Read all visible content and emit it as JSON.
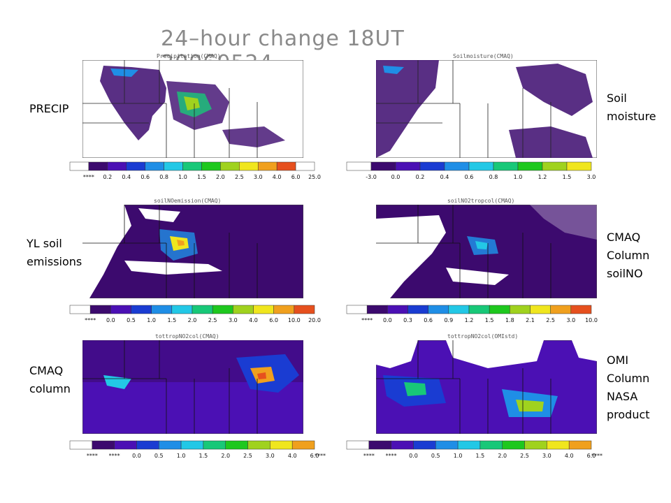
{
  "main_title": "24–hour change 18UT 20060524",
  "side_labels": {
    "precip": "PRECIP",
    "soil_moisture": "Soil\nmoisture",
    "yl_soil": "YL soil\nemissions",
    "cmaq_column_soilno": "CMAQ\nColumn\nsoilNO",
    "cmaq_column": "CMAQ\ncolumn",
    "omi_column": "OMI\nColumn\nNASA\nproduct"
  },
  "panels": [
    {
      "id": "precip",
      "title": "Precipitation(CMAQ)",
      "colorbar": {
        "colors": [
          "#ffffff",
          "#3c0a6e",
          "#4b10b4",
          "#1a3cd2",
          "#1f8ee6",
          "#23c8e6",
          "#18c878",
          "#1ec81e",
          "#a0d21e",
          "#f0e61e",
          "#f0a01e",
          "#e6501e"
        ],
        "ticks": [
          "****",
          "0.2",
          "0.4",
          "0.6",
          "0.8",
          "1.0",
          "1.5",
          "2.0",
          "2.5",
          "3.0",
          "4.0",
          "6.0",
          "25.0"
        ],
        "trailing": ""
      }
    },
    {
      "id": "soil",
      "title": "Soilmoisture(CMAQ)",
      "colorbar": {
        "colors": [
          "#ffffff",
          "#3c0a6e",
          "#4b10b4",
          "#1a3cd2",
          "#1f8ee6",
          "#23c8e6",
          "#18c878",
          "#1ec81e",
          "#a0d21e",
          "#f0e61e",
          "#f0a01e",
          "#e6501e"
        ],
        "ticks": [
          "-3.0",
          "0.0",
          "0.2",
          "0.4",
          "0.6",
          "0.8",
          "1.0",
          "1.2",
          "1.5",
          "3.0"
        ],
        "trailing": ""
      }
    },
    {
      "id": "soilno",
      "title": "soilNOemission(CMAQ)",
      "colorbar": {
        "colors": [
          "#ffffff",
          "#3c0a6e",
          "#4b10b4",
          "#1a3cd2",
          "#1f8ee6",
          "#23c8e6",
          "#18c878",
          "#1ec81e",
          "#a0d21e",
          "#f0e61e",
          "#f0a01e",
          "#e6501e"
        ],
        "ticks": [
          "****",
          "0.0",
          "0.5",
          "1.0",
          "1.5",
          "2.0",
          "2.5",
          "3.0",
          "4.0",
          "6.0",
          "10.0",
          "20.0"
        ],
        "trailing": ""
      }
    },
    {
      "id": "soilno2",
      "title": "soilNO2tropcol(CMAQ)",
      "colorbar": {
        "colors": [
          "#ffffff",
          "#3c0a6e",
          "#4b10b4",
          "#1a3cd2",
          "#1f8ee6",
          "#23c8e6",
          "#18c878",
          "#1ec81e",
          "#a0d21e",
          "#f0e61e",
          "#f0a01e",
          "#e6501e"
        ],
        "ticks": [
          "****",
          "0.0",
          "0.3",
          "0.6",
          "0.9",
          "1.2",
          "1.5",
          "1.8",
          "2.1",
          "2.5",
          "3.0",
          "10.0"
        ],
        "trailing": ""
      }
    },
    {
      "id": "cmaq",
      "title": "tottropNO2col(CMAQ)",
      "colorbar": {
        "colors": [
          "#ffffff",
          "#3c0a6e",
          "#4b10b4",
          "#1a3cd2",
          "#1f8ee6",
          "#23c8e6",
          "#18c878",
          "#1ec81e",
          "#a0d21e",
          "#f0e61e",
          "#f0a01e",
          "#e6501e"
        ],
        "ticks": [
          "****",
          "****",
          "0.0",
          "0.5",
          "1.0",
          "1.5",
          "2.0",
          "2.5",
          "3.0",
          "4.0",
          "6.0"
        ],
        "trailing": "****"
      }
    },
    {
      "id": "omi",
      "title": "tottropNO2col(OMIstd)",
      "colorbar": {
        "colors": [
          "#ffffff",
          "#3c0a6e",
          "#4b10b4",
          "#1a3cd2",
          "#1f8ee6",
          "#23c8e6",
          "#18c878",
          "#1ec81e",
          "#a0d21e",
          "#f0e61e",
          "#f0a01e",
          "#e6501e"
        ],
        "ticks": [
          "****",
          "****",
          "0.0",
          "0.5",
          "1.0",
          "1.5",
          "2.0",
          "2.5",
          "3.0",
          "4.0",
          "6.0"
        ],
        "trailing": "****"
      }
    }
  ]
}
